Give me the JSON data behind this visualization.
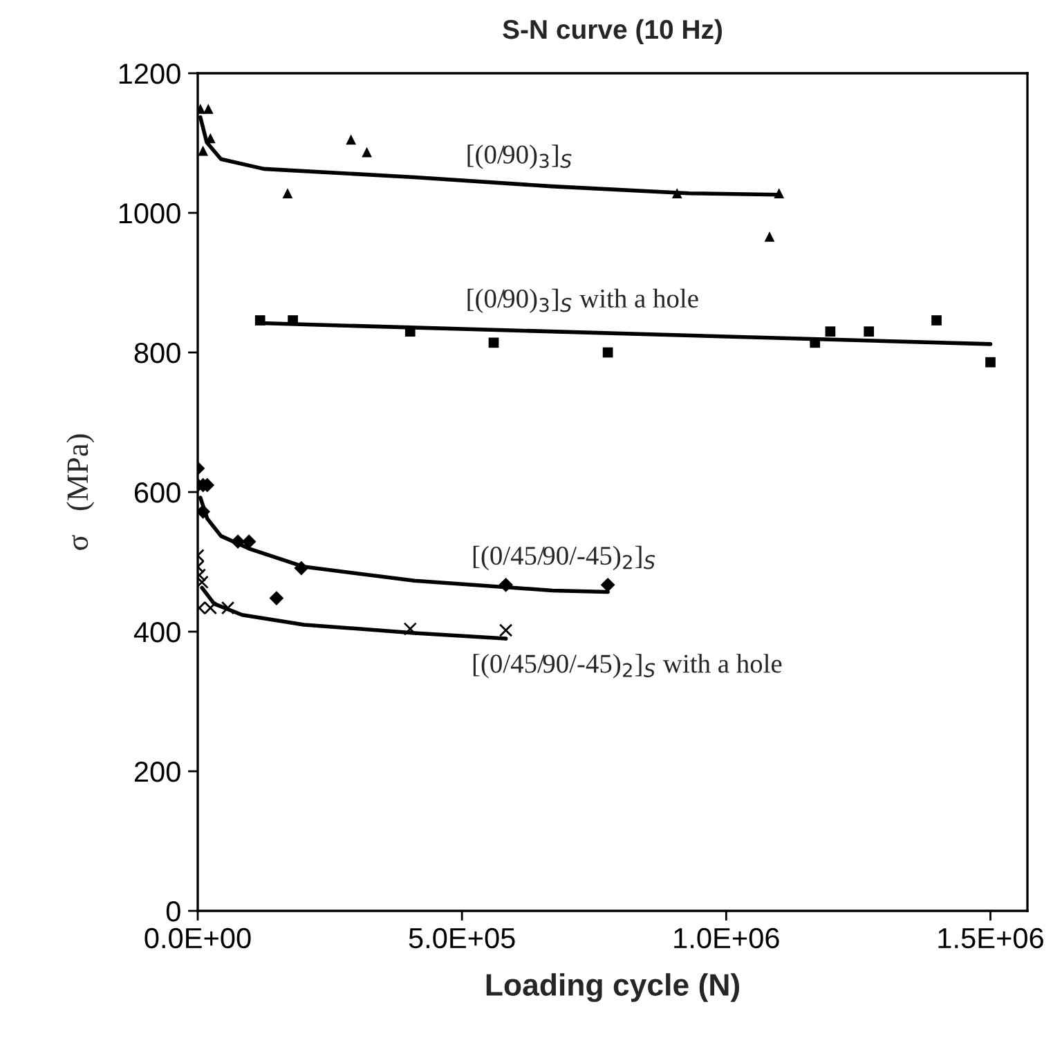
{
  "chart_data": {
    "type": "scatter",
    "title": "S-N curve (10 Hz)",
    "xlabel": "Loading cycle (N)",
    "ylabel": "σ   (MPa)",
    "xlim": [
      0,
      1570000
    ],
    "ylim": [
      0,
      1200
    ],
    "xticks": [
      {
        "value": 0,
        "label": "0.0E+00"
      },
      {
        "value": 500000,
        "label": "5.0E+05"
      },
      {
        "value": 1000000,
        "label": "1.0E+06"
      },
      {
        "value": 1500000,
        "label": "1.5E+06"
      }
    ],
    "yticks": [
      0,
      200,
      400,
      600,
      800,
      1000,
      1200
    ],
    "grid": false,
    "legend": false,
    "series": [
      {
        "marker": "triangle",
        "color": "#000000",
        "x": [
          5000,
          20000,
          10000,
          24000,
          290000,
          320000,
          170000,
          907000,
          1100000,
          1082000
        ],
        "values": [
          1149,
          1149,
          1089,
          1107,
          1105,
          1087,
          1028,
          1028,
          1028,
          966
        ]
      },
      {
        "type": "line",
        "marker": "none",
        "color": "#000000",
        "x": [
          5000,
          17000,
          44000,
          125000,
          410000,
          670000,
          930000,
          1100000
        ],
        "values": [
          1137,
          1101,
          1077,
          1063,
          1051,
          1038,
          1028,
          1026
        ]
      },
      {
        "marker": "square",
        "color": "#000000",
        "x": [
          118000,
          180000,
          402000,
          560000,
          776000,
          1168000,
          1197000,
          1270000,
          1398000,
          1500000
        ],
        "values": [
          846,
          846,
          830,
          814,
          800,
          814,
          830,
          830,
          846,
          786
        ]
      },
      {
        "type": "line",
        "marker": "none",
        "color": "#000000",
        "x": [
          118000,
          1500000
        ],
        "values": [
          842,
          812
        ]
      },
      {
        "marker": "diamond",
        "color": "#000000",
        "x": [
          0,
          0,
          10000,
          18000,
          10000,
          76000,
          97000,
          196000,
          149000,
          583000,
          776000
        ],
        "values": [
          634,
          610,
          610,
          610,
          572,
          529,
          529,
          491,
          448,
          467,
          467
        ]
      },
      {
        "type": "line",
        "marker": "none",
        "color": "#000000",
        "x": [
          5000,
          18000,
          44000,
          97000,
          201000,
          410000,
          671000,
          776000
        ],
        "values": [
          592,
          562,
          537,
          519,
          493,
          473,
          459,
          457
        ]
      },
      {
        "marker": "cross",
        "color": "#000000",
        "x": [
          0,
          0,
          3000,
          8000,
          3000,
          24000,
          57000,
          402000,
          583000
        ],
        "values": [
          509,
          493,
          481,
          471,
          434,
          434,
          434,
          404,
          402
        ]
      },
      {
        "type": "line",
        "marker": "none",
        "color": "#000000",
        "x": [
          8000,
          31000,
          84000,
          201000,
          410000,
          583000
        ],
        "values": [
          463,
          440,
          424,
          410,
          398,
          390
        ]
      }
    ],
    "annotations": [
      "[(0/90)$_{3}$]$_{S}$",
      "[(0/90)$_{3}$]$_{S}$ with a hole",
      "[(0/45/90/-45)$_{2}$]$_{S}$",
      "[(0/45/90/-45)$_{2}$]$_{S}$ with a hole"
    ]
  }
}
